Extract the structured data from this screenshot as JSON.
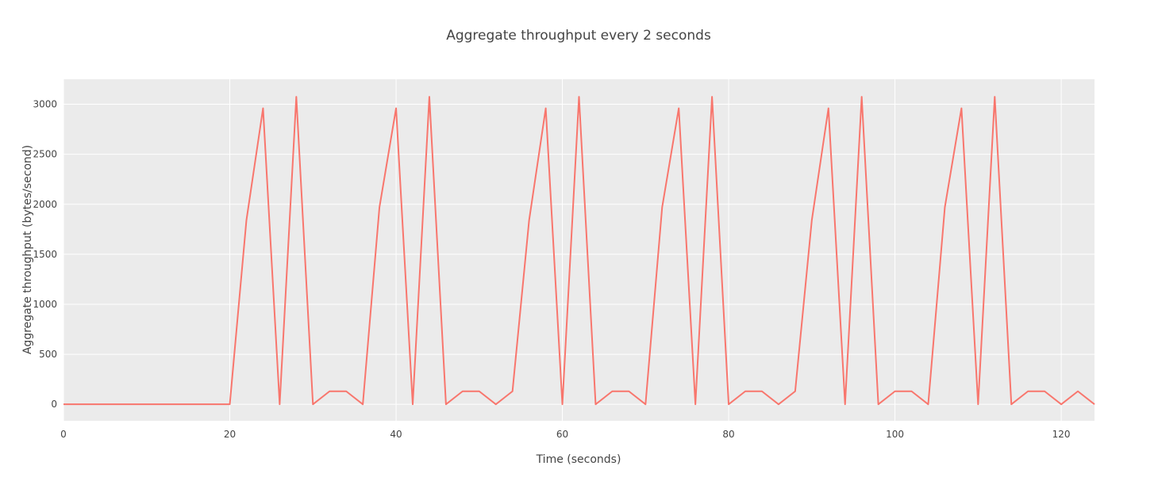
{
  "chart_data": {
    "type": "line",
    "title": "Aggregate throughput every 2 seconds",
    "xlabel": "Time (seconds)",
    "ylabel": "Aggregate throughput (bytes/second)",
    "xlim": [
      0,
      124
    ],
    "ylim": [
      -165,
      3250
    ],
    "x_ticks": [
      0,
      20,
      40,
      60,
      80,
      100,
      120
    ],
    "y_ticks": [
      0,
      500,
      1000,
      1500,
      2000,
      2500,
      3000
    ],
    "grid": true,
    "background": "#ebebeb",
    "line_color": "#f8766d",
    "series": [
      {
        "x": [
          0,
          2,
          4,
          6,
          8,
          10,
          12,
          14,
          16,
          18,
          20,
          22,
          24,
          26,
          28,
          30,
          32,
          34,
          36,
          38,
          40,
          42,
          44,
          46,
          48,
          50,
          52,
          54,
          56,
          58,
          60,
          62,
          64,
          66,
          68,
          70,
          72,
          74,
          76,
          78,
          80,
          82,
          84,
          86,
          88,
          90,
          92,
          94,
          96,
          98,
          100,
          102,
          104,
          106,
          108,
          110,
          112,
          114,
          116,
          118,
          120,
          122,
          124
        ],
        "values": [
          0,
          0,
          0,
          0,
          0,
          0,
          0,
          0,
          0,
          0,
          0,
          1840,
          2960,
          0,
          3075,
          0,
          130,
          130,
          0,
          1970,
          2960,
          0,
          3075,
          0,
          130,
          130,
          0,
          130,
          1840,
          2960,
          0,
          3075,
          0,
          130,
          130,
          0,
          1970,
          2960,
          0,
          3075,
          0,
          130,
          130,
          0,
          130,
          1840,
          2960,
          0,
          3075,
          0,
          130,
          130,
          0,
          1970,
          2960,
          0,
          3075,
          0,
          130,
          130,
          0,
          130,
          0
        ]
      }
    ]
  }
}
